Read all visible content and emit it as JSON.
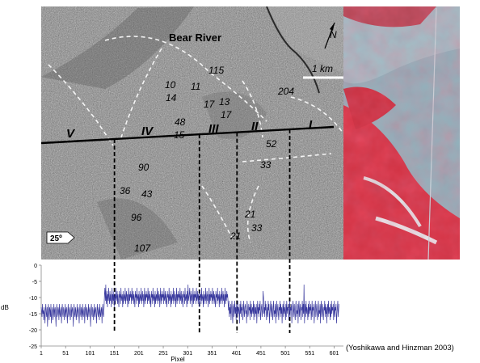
{
  "sar_image": {
    "title": "Bear River",
    "scale_label": "1 km",
    "north_label": "N",
    "angle_badge": "25º",
    "zones": [
      "V",
      "IV",
      "III",
      "II",
      "I"
    ],
    "depth_numbers": [
      "115",
      "204",
      "10",
      "11",
      "14",
      "17",
      "13",
      "17",
      "48",
      "15",
      "52",
      "90",
      "33",
      "36",
      "43",
      "96",
      "107",
      "21",
      "33",
      "21"
    ]
  },
  "colors": {
    "profile_line": "#3a3a9e",
    "optical_red": "#d23344",
    "optical_blue": "#8fb3bd"
  },
  "chart_data": {
    "type": "line",
    "xlabel": "Pixel",
    "ylabel": "dB",
    "xlim": [
      1,
      620
    ],
    "ylim": [
      -25,
      0
    ],
    "xticks": [
      1,
      51,
      101,
      151,
      201,
      251,
      301,
      351,
      401,
      451,
      501,
      551,
      601
    ],
    "yticks": [
      0,
      -5,
      -10,
      -15,
      -20,
      -25
    ],
    "boundary_pixels": [
      151,
      325,
      402,
      510
    ],
    "series": [
      {
        "values": [
          -13,
          -14,
          -16,
          -12,
          -15,
          -14,
          -17,
          -13,
          -15,
          -18,
          -14,
          -12,
          -15,
          -16,
          -13,
          -19,
          -14,
          -12,
          -15,
          -17,
          -13,
          -14,
          -16,
          -12,
          -18,
          -15,
          -13,
          -14,
          -17,
          -15,
          -12,
          -16,
          -14,
          -13,
          -15,
          -19,
          -14,
          -12,
          -16,
          -15,
          -13,
          -14,
          -17,
          -12,
          -15,
          -16,
          -14,
          -13,
          -18,
          -14,
          -12,
          -15,
          -16,
          -13,
          -14,
          -17,
          -15,
          -12,
          -16,
          -14,
          -13,
          -15,
          -18,
          -14,
          -12,
          -16,
          -15,
          -13,
          -14,
          -17,
          -15,
          -12,
          -16,
          -14,
          -13,
          -15,
          -19,
          -14,
          -12,
          -15,
          -16,
          -13,
          -14,
          -17,
          -15,
          -12,
          -16,
          -14,
          -13,
          -15,
          -18,
          -14,
          -12,
          -15,
          -16,
          -13,
          -14,
          -17,
          -12,
          -15,
          -16,
          -14,
          -13,
          -18,
          -14,
          -12,
          -15,
          -16,
          -13,
          -14,
          -17,
          -15,
          -12,
          -16,
          -14,
          -13,
          -15,
          -19,
          -14,
          -12,
          -15,
          -16,
          -13,
          -14,
          -17,
          -15,
          -12,
          -16,
          -14,
          -13,
          -15,
          -18,
          -14,
          -12,
          -15,
          -16,
          -13,
          -14,
          -17,
          -12,
          -15,
          -16,
          -14,
          -13,
          -18,
          -14,
          -12,
          -15,
          -16,
          -13,
          -9,
          -7,
          -11,
          -6,
          -12,
          -10,
          -8,
          -13,
          -9,
          -11,
          -7,
          -10,
          -12,
          -8,
          -11,
          -9,
          -13,
          -10,
          -7,
          -12,
          -9,
          -11,
          -8,
          -13,
          -10,
          -9,
          -12,
          -7,
          -11,
          -10,
          -8,
          -12,
          -9,
          -11,
          -13,
          -8,
          -10,
          -9,
          -12,
          -7,
          -11,
          -10,
          -9,
          -13,
          -8,
          -12,
          -10,
          -9,
          -11,
          -7,
          -12,
          -10,
          -8,
          -11,
          -9,
          -13,
          -10,
          -7,
          -12,
          -9,
          -11,
          -8,
          -10,
          -9,
          -12,
          -7,
          -11,
          -10,
          -8,
          -12,
          -9,
          -11,
          -13,
          -8,
          -10,
          -9,
          -12,
          -7,
          -11,
          -10,
          -9,
          -13,
          -8,
          -12,
          -10,
          -9,
          -11,
          -7,
          -12,
          -10,
          -8,
          -11,
          -9,
          -13,
          -10,
          -7,
          -12,
          -9,
          -11,
          -8,
          -10,
          -9,
          -12,
          -7,
          -11,
          -10,
          -8,
          -12,
          -9,
          -11,
          -13,
          -8,
          -10,
          -9,
          -12,
          -7,
          -11,
          -10,
          -9,
          -13,
          -8,
          -12,
          -10,
          -9,
          -11,
          -7,
          -12,
          -10,
          -8,
          -11,
          -9,
          -13,
          -10,
          -7,
          -12,
          -9,
          -11,
          -8,
          -10,
          -9,
          -12,
          -7,
          -11,
          -10,
          -8,
          -12,
          -9,
          -11,
          -13,
          -8,
          -10,
          -9,
          -12,
          -7,
          -11,
          -10,
          -9,
          -13,
          -8,
          -12,
          -10,
          -9,
          -11,
          -7,
          -12,
          -10,
          -8,
          -11,
          -9,
          -13,
          -10,
          -7,
          -12,
          -9,
          -11,
          -8,
          -10,
          -9,
          -12,
          -7,
          -11,
          -10,
          -8,
          -12,
          -9,
          -11,
          -13,
          -8,
          -10,
          -9,
          -12,
          -7,
          -11,
          -10,
          -9,
          -13,
          -8,
          -12,
          -6,
          -11,
          -10,
          -9,
          -7,
          -12,
          -10,
          -8,
          -11,
          -9,
          -13,
          -10,
          -7,
          -12,
          -9,
          -11,
          -8,
          -10,
          -9,
          -12,
          -7,
          -11,
          -10,
          -8,
          -12,
          -9,
          -11,
          -13,
          -8,
          -10,
          -9,
          -12,
          -7,
          -11,
          -10,
          -9,
          -13,
          -8,
          -12,
          -10,
          -9,
          -11,
          -7,
          -12,
          -10,
          -8,
          -11,
          -9,
          -13,
          -10,
          -7,
          -12,
          -9,
          -11,
          -8,
          -10,
          -9,
          -12,
          -7,
          -11,
          -10,
          -8,
          -12,
          -9,
          -11,
          -13,
          -8,
          -10,
          -9,
          -12,
          -7,
          -11,
          -10,
          -9,
          -13,
          -8,
          -12,
          -10,
          -9,
          -11,
          -7,
          -12,
          -10,
          -8,
          -11,
          -9,
          -13,
          -10,
          -7,
          -12,
          -9,
          -11,
          -8,
          -10,
          -9,
          -12,
          -14,
          -11,
          -16,
          -13,
          -15,
          -12,
          -17,
          -14,
          -11,
          -15,
          -18,
          -13,
          -12,
          -16,
          -14,
          -11,
          -15,
          -13,
          -17,
          -12,
          -14,
          -16,
          -11,
          -15,
          -13,
          -14,
          -18,
          -12,
          -15,
          -11,
          -16,
          -13,
          -14,
          -12,
          -17,
          -15,
          -11,
          -14,
          -16,
          -13,
          -12,
          -15,
          -14,
          -18,
          -11,
          -13,
          -16,
          -15,
          -12,
          -14,
          -13,
          -17,
          -11,
          -15,
          -12,
          -16,
          -14,
          -13,
          -15,
          -11,
          -17,
          -12,
          -14,
          -16,
          -13,
          -15,
          -12,
          -18,
          -14,
          -11,
          -15,
          -13,
          -16,
          -12,
          -14,
          -11,
          -17,
          -15,
          -13,
          -12,
          -16,
          -14,
          -8,
          -10,
          -15,
          -13,
          -16,
          -11,
          -14,
          -12,
          -17,
          -15,
          -13,
          -16,
          -11,
          -14,
          -12,
          -18,
          -15,
          -13,
          -11,
          -16,
          -14,
          -12,
          -15,
          -17,
          -13,
          -11,
          -16,
          -14,
          -15,
          -12,
          -18,
          -13,
          -11,
          -16,
          -14,
          -12,
          -15,
          -17,
          -13,
          -14,
          -11,
          -16,
          -12,
          -15,
          -13,
          -18,
          -14,
          -12,
          -16,
          -11,
          -15,
          -13,
          -14,
          -17,
          -12,
          -16,
          -11,
          -15,
          -13,
          -14,
          -12,
          -17,
          -15,
          -11,
          -16,
          -13,
          -14,
          -12,
          -18,
          -15,
          -13,
          -11,
          -16,
          -14,
          -12,
          -15,
          -17,
          -13,
          -11,
          -16,
          -14,
          -15,
          -12,
          -18,
          -13,
          -11,
          -16,
          -14,
          -12,
          -15,
          -17,
          -13,
          -14,
          -11,
          -16,
          -12,
          -15,
          -6,
          -18,
          -14,
          -12,
          -16,
          -11,
          -15,
          -13,
          -14,
          -17,
          -12,
          -16,
          -11,
          -15,
          -13,
          -14,
          -12,
          -17,
          -15,
          -11,
          -16,
          -13,
          -14,
          -12,
          -18,
          -15,
          -13,
          -11,
          -16,
          -14,
          -12,
          -15,
          -17,
          -13,
          -11,
          -16,
          -14,
          -15,
          -12,
          -18,
          -13,
          -11,
          -16,
          -14,
          -12,
          -15,
          -17,
          -13,
          -14,
          -11,
          -16,
          -12,
          -15,
          -13,
          -18,
          -14,
          -12,
          -16,
          -11,
          -15,
          -13,
          -14,
          -17,
          -12,
          -16,
          -11,
          -15,
          -13,
          -14,
          -12,
          -17,
          -15,
          -11,
          -16,
          -13,
          -14,
          -12,
          -18,
          -15,
          -13,
          -11,
          -16,
          -14,
          -12
        ]
      }
    ]
  },
  "caption": "(Yoshikawa and Hinzman 2003)"
}
